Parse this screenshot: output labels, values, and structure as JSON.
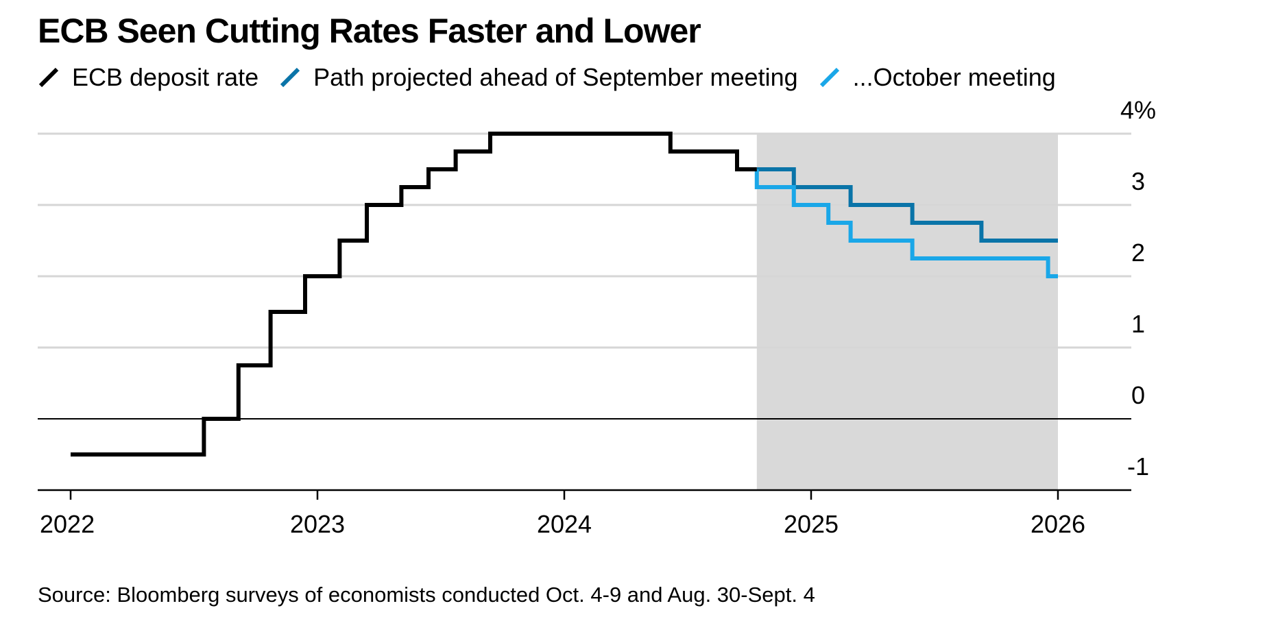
{
  "title": "ECB Seen Cutting Rates Faster and Lower",
  "source": "Source: Bloomberg surveys of economists conducted Oct. 4-9 and Aug. 30-Sept. 4",
  "colors": {
    "background": "#ffffff",
    "shade": "#d9d9d9",
    "gridline": "#d6d6d6",
    "axis": "#000000",
    "ecb": "#000000",
    "september": "#0a74a8",
    "october": "#1aa7e8"
  },
  "chart_data": {
    "type": "line",
    "step": true,
    "title": "ECB Seen Cutting Rates Faster and Lower",
    "xlabel": "",
    "ylabel": "",
    "xlim": [
      2022.0,
      2026.28
    ],
    "ylim": [
      -1,
      4
    ],
    "x_ticks": [
      2022,
      2023,
      2024,
      2025,
      2026
    ],
    "x_tick_labels": [
      "2022",
      "2023",
      "2024",
      "2025",
      "2026"
    ],
    "y_ticks": [
      -1,
      0,
      1,
      2,
      3,
      4
    ],
    "y_tick_labels": [
      "-1",
      "0",
      "1",
      "2",
      "3",
      "4%"
    ],
    "shaded_region": [
      2024.78,
      2026.0
    ],
    "legend_position": "top",
    "series": [
      {
        "name": "ECB deposit rate",
        "color_key": "ecb",
        "x": [
          2022.0,
          2022.54,
          2022.54,
          2022.68,
          2022.68,
          2022.81,
          2022.81,
          2022.95,
          2022.95,
          2023.09,
          2023.09,
          2023.2,
          2023.2,
          2023.34,
          2023.34,
          2023.45,
          2023.45,
          2023.56,
          2023.56,
          2023.7,
          2023.7,
          2024.43,
          2024.43,
          2024.7,
          2024.7,
          2024.78
        ],
        "y": [
          -0.5,
          -0.5,
          0.0,
          0.0,
          0.75,
          0.75,
          1.5,
          1.5,
          2.0,
          2.0,
          2.5,
          2.5,
          3.0,
          3.0,
          3.25,
          3.25,
          3.5,
          3.5,
          3.75,
          3.75,
          4.0,
          4.0,
          3.75,
          3.75,
          3.5,
          3.5
        ]
      },
      {
        "name": "Path projected ahead of September meeting",
        "color_key": "september",
        "x": [
          2024.78,
          2024.93,
          2024.93,
          2025.16,
          2025.16,
          2025.41,
          2025.41,
          2025.69,
          2025.69,
          2026.0
        ],
        "y": [
          3.5,
          3.5,
          3.25,
          3.25,
          3.0,
          3.0,
          2.75,
          2.75,
          2.5,
          2.5
        ]
      },
      {
        "name": "...October meeting",
        "color_key": "october",
        "x": [
          2024.78,
          2024.78,
          2024.93,
          2024.93,
          2025.07,
          2025.07,
          2025.16,
          2025.16,
          2025.41,
          2025.41,
          2025.96,
          2025.96,
          2026.0
        ],
        "y": [
          3.5,
          3.25,
          3.25,
          3.0,
          3.0,
          2.75,
          2.75,
          2.5,
          2.5,
          2.25,
          2.25,
          2.0,
          2.0
        ]
      }
    ]
  }
}
